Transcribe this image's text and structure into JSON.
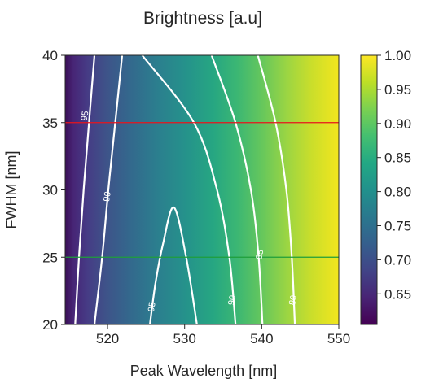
{
  "chart_data": {
    "type": "heatmap",
    "title": "Brightness [a.u]",
    "xlabel": "Peak Wavelength [nm]",
    "ylabel": "FWHM [nm]",
    "xlim": [
      514.5,
      550
    ],
    "ylim": [
      20,
      40
    ],
    "xticks": [
      520,
      530,
      540,
      550
    ],
    "yticks": [
      20,
      25,
      30,
      35,
      40
    ],
    "colorbar": {
      "range": [
        0.605,
        1.0
      ],
      "ticks": [
        "1.00",
        "0.95",
        "0.90",
        "0.85",
        "0.80",
        "0.75",
        "0.70",
        "0.65"
      ],
      "colormap": "viridis"
    },
    "contours": [
      {
        "label": "95",
        "points": [
          [
            515.8,
            20
          ],
          [
            516.3,
            25
          ],
          [
            516.9,
            30
          ],
          [
            517.6,
            35
          ],
          [
            518.3,
            40
          ]
        ],
        "label_at": [
          517.1,
          35.5
        ]
      },
      {
        "label": "90",
        "points": [
          [
            518.3,
            20
          ],
          [
            519.3,
            25
          ],
          [
            520.1,
            30
          ],
          [
            521.0,
            35
          ],
          [
            521.9,
            40
          ]
        ],
        "label_at": [
          520.0,
          29.5
        ]
      },
      {
        "label": "95",
        "points": [
          [
            525.5,
            20
          ],
          [
            526.2,
            23
          ],
          [
            527.2,
            26
          ],
          [
            528.6,
            28.7
          ],
          [
            530.2,
            25
          ],
          [
            531.6,
            20
          ]
        ],
        "label_at": [
          525.8,
          21.3
        ]
      },
      {
        "label": "90",
        "points": [
          [
            524.5,
            40
          ],
          [
            531.2,
            35
          ],
          [
            534.2,
            30
          ],
          [
            535.8,
            25
          ],
          [
            536.6,
            20
          ]
        ],
        "label_at": [
          536.2,
          21.8
        ]
      },
      {
        "label": "85",
        "points": [
          [
            533.5,
            40
          ],
          [
            536.6,
            35
          ],
          [
            538.6,
            30
          ],
          [
            539.6,
            25
          ],
          [
            540.1,
            20
          ]
        ],
        "label_at": [
          539.8,
          25.2
        ]
      },
      {
        "label": "80",
        "points": [
          [
            539.5,
            40
          ],
          [
            541.8,
            35
          ],
          [
            543.2,
            30
          ],
          [
            543.9,
            25
          ],
          [
            544.3,
            20
          ]
        ],
        "label_at": [
          544.1,
          21.8
        ]
      }
    ],
    "reference_lines": [
      {
        "y": 35,
        "color": "#e8141c"
      },
      {
        "y": 25,
        "color": "#1e9e3a"
      }
    ]
  }
}
